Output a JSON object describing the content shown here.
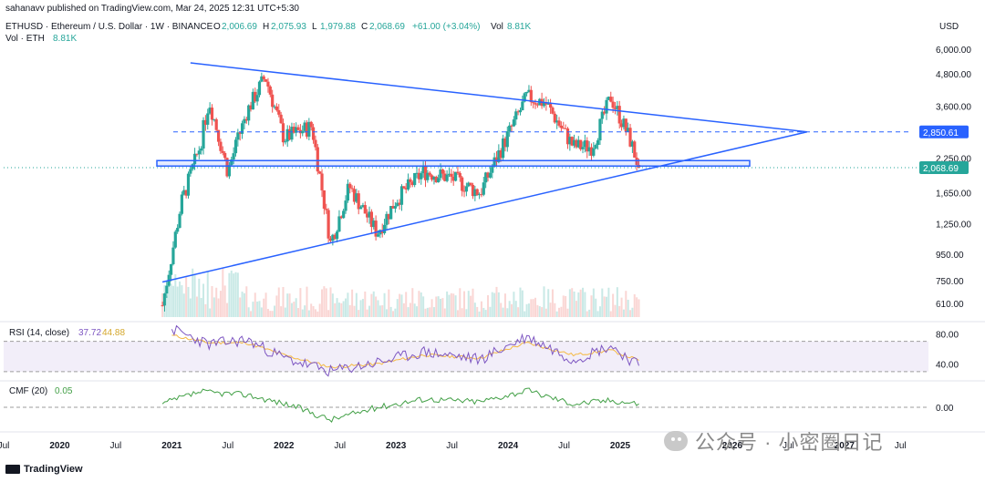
{
  "header": {
    "publisher_line": "sahanavv published on TradingView.com, Mar 24, 2025 12:31 UTC+5:30",
    "symbol": "ETHUSD · Ethereum / U.S. Dollar · 1W · BINANCE",
    "ohlc": [
      {
        "label": "O",
        "value": "2,006.69"
      },
      {
        "label": "H",
        "value": "2,075.93"
      },
      {
        "label": "L",
        "value": "1,979.88"
      },
      {
        "label": "C",
        "value": "2,068.69"
      }
    ],
    "change": "+61.00 (+3.04%)",
    "vol_label": "Vol",
    "vol_value": "8.81K",
    "vol_eth_label": "Vol · ETH",
    "vol_eth_value": "8.81K",
    "currency": "USD"
  },
  "rsi_legend": {
    "label": "RSI (14, close)",
    "value1": "37.72",
    "value2": "44.88"
  },
  "cmf_legend": {
    "label": "CMF (20)",
    "value": "0.05"
  },
  "footer": {
    "brand": "TradingView",
    "watermark": "公众号 · 小密圈日记"
  },
  "colors": {
    "up": "#26a69a",
    "down": "#ef5350",
    "trendline": "#2962ff",
    "rsi": "#7e57c2",
    "rsi_ma": "#f7c548",
    "cmf": "#43a047",
    "price_badge": "#26a69a",
    "level_badge": "#2962ff"
  },
  "chart_data": [
    {
      "type": "candlestick",
      "title": "ETHUSD · Ethereum / U.S. Dollar · 1W · BINANCE",
      "x_tick_labels": [
        "Jul",
        "2020",
        "Jul",
        "2021",
        "Jul",
        "2022",
        "Jul",
        "2023",
        "Jul",
        "2024",
        "Jul",
        "2025",
        "Jul",
        "2026",
        "Jul",
        "2027",
        "Jul"
      ],
      "y_ticks": [
        610,
        750,
        950,
        1250,
        1650,
        2250,
        2850.61,
        3600,
        4800,
        6000
      ],
      "y_tick_labels": [
        "610.00",
        "750.00",
        "950.00",
        "1,250.00",
        "1,650.00",
        "2,250.00",
        "2,850.61",
        "3,600.00",
        "4,800.00",
        "6,000.00"
      ],
      "scale": "log",
      "ylim": [
        540,
        6400
      ],
      "last_price": "2,068.69",
      "highlight_level": "2,850.61",
      "series": [
        {
          "name": "ETHUSD weekly close (approx.)",
          "x": [
            "2020-12",
            "2021-02",
            "2021-04",
            "2021-05",
            "2021-07",
            "2021-09",
            "2021-11",
            "2022-01",
            "2022-04",
            "2022-06",
            "2022-08",
            "2022-11",
            "2023-01",
            "2023-04",
            "2023-07",
            "2023-10",
            "2023-12",
            "2024-03",
            "2024-05",
            "2024-08",
            "2024-10",
            "2024-12",
            "2025-02",
            "2025-03"
          ],
          "values": [
            600,
            1500,
            2500,
            3800,
            2000,
            3400,
            4700,
            2700,
            3000,
            1050,
            1750,
            1150,
            1550,
            2000,
            1880,
            1650,
            2350,
            3900,
            3700,
            2500,
            2500,
            3900,
            2700,
            2068.69
          ]
        }
      ],
      "trendlines": [
        {
          "name": "upper",
          "from": {
            "x": "2021-03",
            "y": 5300
          },
          "to": {
            "x": "2026-09",
            "y": 2850.61
          }
        },
        {
          "name": "lower",
          "from": {
            "x": "2020-12",
            "y": 740
          },
          "to": {
            "x": "2026-09",
            "y": 2850.61
          }
        },
        {
          "name": "support-band",
          "from": {
            "x": "2020-12",
            "y": 2150
          },
          "to": {
            "x": "2026-02",
            "y": 2050
          }
        }
      ]
    },
    {
      "type": "line",
      "title": "RSI (14, close)",
      "y_tick_labels": [
        "80.00",
        "40.00"
      ],
      "ylim": [
        25,
        90
      ],
      "bands": [
        70,
        30
      ],
      "series": [
        {
          "name": "RSI",
          "x": [
            "2021-01",
            "2021-05",
            "2021-09",
            "2022-01",
            "2022-06",
            "2022-11",
            "2023-04",
            "2023-10",
            "2024-03",
            "2024-08",
            "2024-12",
            "2025-03"
          ],
          "values": [
            86,
            66,
            72,
            48,
            30,
            42,
            56,
            46,
            76,
            46,
            64,
            37.72
          ]
        },
        {
          "name": "RSI MA",
          "x": [
            "2021-01",
            "2021-05",
            "2021-09",
            "2022-01",
            "2022-06",
            "2022-11",
            "2023-04",
            "2023-10",
            "2024-03",
            "2024-08",
            "2024-12",
            "2025-03"
          ],
          "values": [
            78,
            68,
            68,
            52,
            36,
            40,
            52,
            48,
            68,
            52,
            58,
            44.88
          ]
        }
      ]
    },
    {
      "type": "line",
      "title": "CMF (20)",
      "y_tick_labels": [
        "0.00"
      ],
      "ylim": [
        -0.3,
        0.3
      ],
      "series": [
        {
          "name": "CMF",
          "x": [
            "2020-12",
            "2021-04",
            "2021-09",
            "2022-02",
            "2022-06",
            "2022-11",
            "2023-04",
            "2023-10",
            "2024-03",
            "2024-08",
            "2024-12",
            "2025-03"
          ],
          "values": [
            0.05,
            0.22,
            0.18,
            0.02,
            -0.18,
            0.0,
            0.12,
            0.08,
            0.24,
            0.05,
            0.1,
            0.05
          ]
        }
      ]
    }
  ]
}
